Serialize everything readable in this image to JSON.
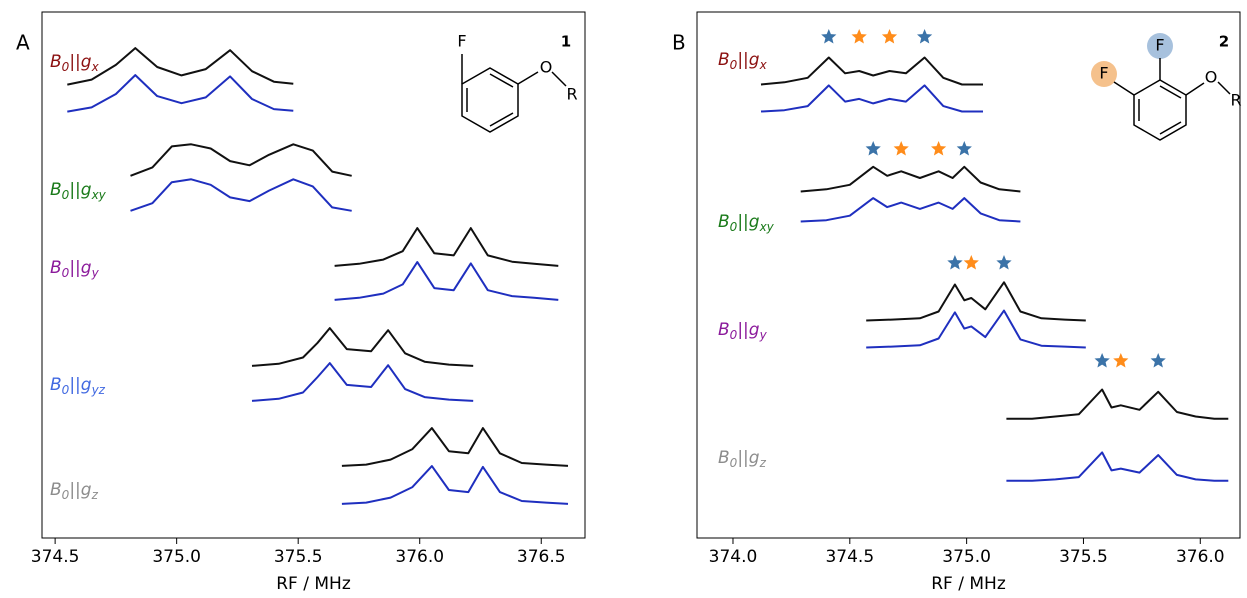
{
  "chart_data": [
    {
      "type": "line",
      "panel_label": "A",
      "xlabel": "RF / MHz",
      "xlim": [
        374.446,
        376.68
      ],
      "xticks": [
        374.5,
        {
          "value": 375,
          "label": "375.0"
        },
        375.5,
        {
          "value": 376,
          "label": "376.0"
        },
        376.5
      ],
      "structure": {
        "number": "1",
        "atoms": [
          "F",
          "O",
          "R"
        ]
      },
      "rows": [
        {
          "label": [
            "B",
            "0",
            "||g",
            "x"
          ],
          "label_color": "#8b1010",
          "x": [
            374.55,
            374.65,
            374.75,
            374.83,
            374.92,
            375.02,
            375.12,
            375.22,
            375.31,
            375.4,
            375.48
          ],
          "series": [
            {
              "color": "#111111",
              "values": [
                0.08,
                0.2,
                0.55,
                0.95,
                0.5,
                0.3,
                0.45,
                0.9,
                0.4,
                0.15,
                0.1
              ]
            },
            {
              "color": "#1f2fbf",
              "values": [
                0.08,
                0.18,
                0.5,
                0.95,
                0.45,
                0.28,
                0.42,
                0.92,
                0.38,
                0.14,
                0.1
              ]
            }
          ]
        },
        {
          "label": [
            "B",
            "0",
            "||g",
            "xy"
          ],
          "label_color": "#1a7a1a",
          "x": [
            374.81,
            374.9,
            374.98,
            375.06,
            375.14,
            375.22,
            375.3,
            375.38,
            375.48,
            375.56,
            375.64,
            375.72
          ],
          "series": [
            {
              "color": "#111111",
              "values": [
                0.1,
                0.3,
                0.8,
                0.85,
                0.75,
                0.45,
                0.35,
                0.6,
                0.85,
                0.7,
                0.2,
                0.1
              ]
            },
            {
              "color": "#1f2fbf",
              "values": [
                0.1,
                0.28,
                0.78,
                0.85,
                0.72,
                0.42,
                0.33,
                0.58,
                0.85,
                0.68,
                0.18,
                0.1
              ]
            }
          ]
        },
        {
          "label": [
            "B",
            "0",
            "||g",
            "y"
          ],
          "label_color": "#8b1a9b",
          "x": [
            375.65,
            375.75,
            375.85,
            375.93,
            375.99,
            376.06,
            376.14,
            376.21,
            376.28,
            376.38,
            376.47,
            376.57
          ],
          "series": [
            {
              "color": "#111111",
              "values": [
                0.05,
                0.1,
                0.2,
                0.4,
                0.95,
                0.35,
                0.3,
                0.95,
                0.3,
                0.15,
                0.1,
                0.05
              ]
            },
            {
              "color": "#1f2fbf",
              "values": [
                0.05,
                0.1,
                0.2,
                0.42,
                0.95,
                0.33,
                0.28,
                0.92,
                0.28,
                0.14,
                0.1,
                0.05
              ]
            }
          ]
        },
        {
          "label": [
            "B",
            "0",
            "||g",
            "yz"
          ],
          "label_color": "#4169e1",
          "x": [
            375.31,
            375.42,
            375.52,
            375.58,
            375.63,
            375.7,
            375.8,
            375.87,
            375.94,
            376.02,
            376.12,
            376.22
          ],
          "series": [
            {
              "color": "#111111",
              "values": [
                0.05,
                0.1,
                0.25,
                0.6,
                0.95,
                0.45,
                0.4,
                0.9,
                0.35,
                0.15,
                0.08,
                0.05
              ]
            },
            {
              "color": "#1f2fbf",
              "values": [
                0.05,
                0.1,
                0.25,
                0.62,
                0.95,
                0.43,
                0.38,
                0.9,
                0.33,
                0.14,
                0.08,
                0.05
              ]
            }
          ]
        },
        {
          "label": [
            "B",
            "0",
            "||g",
            "z"
          ],
          "label_color": "#8c8c8c",
          "x": [
            375.68,
            375.78,
            375.88,
            375.97,
            376.05,
            376.12,
            376.2,
            376.26,
            376.33,
            376.42,
            376.52,
            376.61
          ],
          "series": [
            {
              "color": "#111111",
              "values": [
                0.05,
                0.08,
                0.2,
                0.45,
                0.95,
                0.4,
                0.35,
                0.95,
                0.35,
                0.12,
                0.08,
                0.05
              ]
            },
            {
              "color": "#1f2fbf",
              "values": [
                0.05,
                0.08,
                0.2,
                0.45,
                0.95,
                0.38,
                0.33,
                0.93,
                0.33,
                0.12,
                0.08,
                0.05
              ]
            }
          ]
        }
      ]
    },
    {
      "type": "line",
      "panel_label": "B",
      "xlabel": "RF / MHz",
      "xlim": [
        373.846,
        376.17
      ],
      "xticks": [
        {
          "value": 374,
          "label": "374.0"
        },
        374.5,
        {
          "value": 375,
          "label": "375.0"
        },
        375.5,
        {
          "value": 376,
          "label": "376.0"
        }
      ],
      "structure": {
        "number": "2",
        "atoms": [
          "F",
          "F",
          "O",
          "R"
        ]
      },
      "rows": [
        {
          "label": [
            "B",
            "0",
            "||g",
            "x"
          ],
          "label_color": "#8b1010",
          "x": [
            374.12,
            374.22,
            374.32,
            374.41,
            374.48,
            374.54,
            374.6,
            374.67,
            374.74,
            374.82,
            374.9,
            374.98,
            375.07
          ],
          "series": [
            {
              "color": "#111111",
              "values": [
                0.3,
                0.35,
                0.45,
                0.9,
                0.55,
                0.6,
                0.5,
                0.6,
                0.55,
                0.9,
                0.45,
                0.3,
                0.3
              ]
            },
            {
              "color": "#1f2fbf",
              "values": [
                0.3,
                0.33,
                0.42,
                0.88,
                0.52,
                0.58,
                0.48,
                0.58,
                0.52,
                0.88,
                0.42,
                0.3,
                0.3
              ]
            }
          ],
          "markers": [
            {
              "x": 374.41,
              "color": "#3b73a8"
            },
            {
              "x": 374.54,
              "color": "#ff8c1a"
            },
            {
              "x": 374.67,
              "color": "#ff8c1a"
            },
            {
              "x": 374.82,
              "color": "#3b73a8"
            }
          ]
        },
        {
          "label": [
            "B",
            "0",
            "||g",
            "xy"
          ],
          "label_color": "#1a7a1a",
          "x": [
            374.29,
            374.4,
            374.5,
            374.6,
            374.66,
            374.72,
            374.8,
            374.88,
            374.94,
            374.99,
            375.06,
            375.14,
            375.23
          ],
          "series": [
            {
              "color": "#111111",
              "values": [
                0.3,
                0.35,
                0.45,
                0.85,
                0.65,
                0.75,
                0.6,
                0.75,
                0.6,
                0.85,
                0.5,
                0.35,
                0.3
              ]
            },
            {
              "color": "#1f2fbf",
              "values": [
                0.3,
                0.33,
                0.43,
                0.82,
                0.62,
                0.72,
                0.58,
                0.72,
                0.58,
                0.82,
                0.48,
                0.33,
                0.3
              ]
            }
          ],
          "markers": [
            {
              "x": 374.6,
              "color": "#3b73a8"
            },
            {
              "x": 374.72,
              "color": "#ff8c1a"
            },
            {
              "x": 374.88,
              "color": "#ff8c1a"
            },
            {
              "x": 374.99,
              "color": "#3b73a8"
            }
          ]
        },
        {
          "label": [
            "B",
            "0",
            "||g",
            "y"
          ],
          "label_color": "#8b1a9b",
          "x": [
            374.57,
            374.68,
            374.8,
            374.88,
            374.95,
            374.99,
            375.02,
            375.08,
            375.16,
            375.23,
            375.32,
            375.42,
            375.51
          ],
          "series": [
            {
              "color": "#111111",
              "values": [
                0.1,
                0.12,
                0.15,
                0.3,
                0.9,
                0.55,
                0.6,
                0.35,
                0.95,
                0.3,
                0.15,
                0.12,
                0.1
              ]
            },
            {
              "color": "#1f2fbf",
              "values": [
                0.1,
                0.12,
                0.15,
                0.3,
                0.88,
                0.52,
                0.57,
                0.33,
                0.92,
                0.28,
                0.14,
                0.12,
                0.1
              ]
            }
          ],
          "markers": [
            {
              "x": 374.95,
              "color": "#3b73a8"
            },
            {
              "x": 375.02,
              "color": "#ff8c1a"
            },
            {
              "x": 375.16,
              "color": "#3b73a8"
            }
          ]
        },
        {
          "label": [
            "B",
            "0",
            "||g",
            "z"
          ],
          "label_color": "#8c8c8c",
          "x": [
            375.17,
            375.28,
            375.38,
            375.48,
            375.58,
            375.62,
            375.66,
            375.74,
            375.82,
            375.9,
            375.98,
            376.06,
            376.12
          ],
          "series": [
            {
              "color": "#111111",
              "values": [
                0.25,
                0.25,
                0.3,
                0.35,
                0.9,
                0.5,
                0.55,
                0.45,
                0.85,
                0.4,
                0.3,
                0.25,
                0.25
              ]
            },
            {
              "color": "#1f2fbf",
              "values": [
                0.25,
                0.25,
                0.28,
                0.33,
                0.88,
                0.48,
                0.52,
                0.43,
                0.82,
                0.38,
                0.28,
                0.25,
                0.25
              ]
            }
          ],
          "markers": [
            {
              "x": 375.58,
              "color": "#3b73a8"
            },
            {
              "x": 375.66,
              "color": "#ff8c1a"
            },
            {
              "x": 375.82,
              "color": "#3b73a8"
            }
          ]
        }
      ]
    }
  ]
}
